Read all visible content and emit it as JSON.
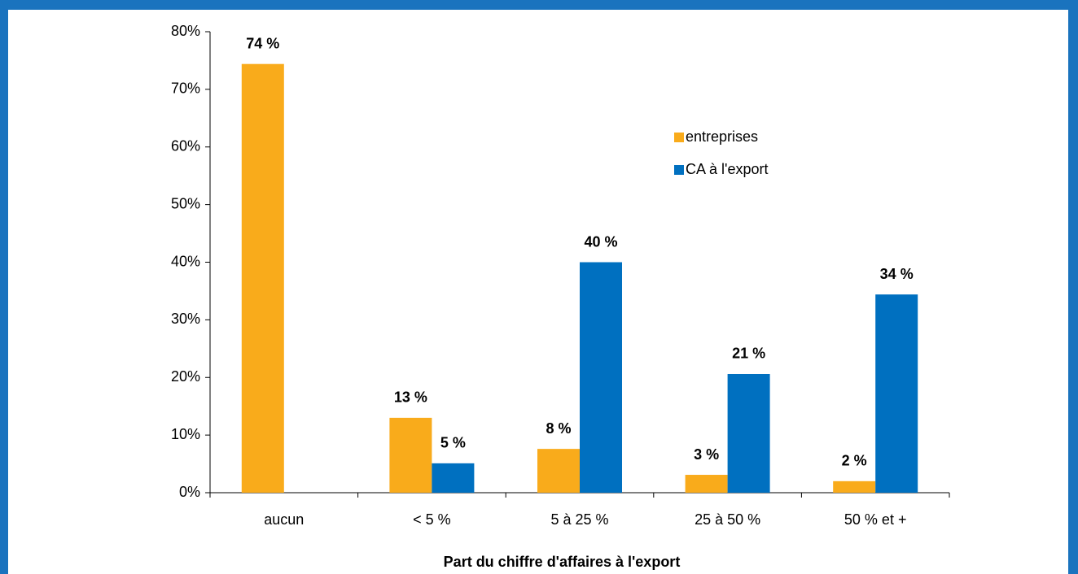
{
  "chart_data": {
    "type": "bar",
    "categories": [
      "aucun",
      "< 5 %",
      "5 à 25 %",
      "25 à 50 %",
      "50 % et +"
    ],
    "series": [
      {
        "name": "entreprises",
        "color": "#f9ab1b",
        "values": [
          74.4,
          13,
          7.6,
          3.1,
          2
        ],
        "value_labels": [
          "74 %",
          "13 %",
          "8 %",
          "3 %",
          "2 %"
        ]
      },
      {
        "name": "CA à l'export",
        "color": "#0070c0",
        "values": [
          null,
          5.1,
          40,
          20.6,
          34.4
        ],
        "value_labels": [
          null,
          "5 %",
          "40 %",
          "21 %",
          "34 %"
        ]
      }
    ],
    "x_label": "Part du chiffre d'affaires à l'export",
    "ylim": [
      0,
      80
    ],
    "yticks": [
      {
        "value": 0,
        "label": "0%"
      },
      {
        "value": 10,
        "label": "10%"
      },
      {
        "value": 20,
        "label": "20%"
      },
      {
        "value": 30,
        "label": "30%"
      },
      {
        "value": 40,
        "label": "40%"
      },
      {
        "value": 50,
        "label": "50%"
      },
      {
        "value": 60,
        "label": "60%"
      },
      {
        "value": 70,
        "label": "70%"
      },
      {
        "value": 80,
        "label": "80%"
      }
    ],
    "legend": "upper right"
  }
}
